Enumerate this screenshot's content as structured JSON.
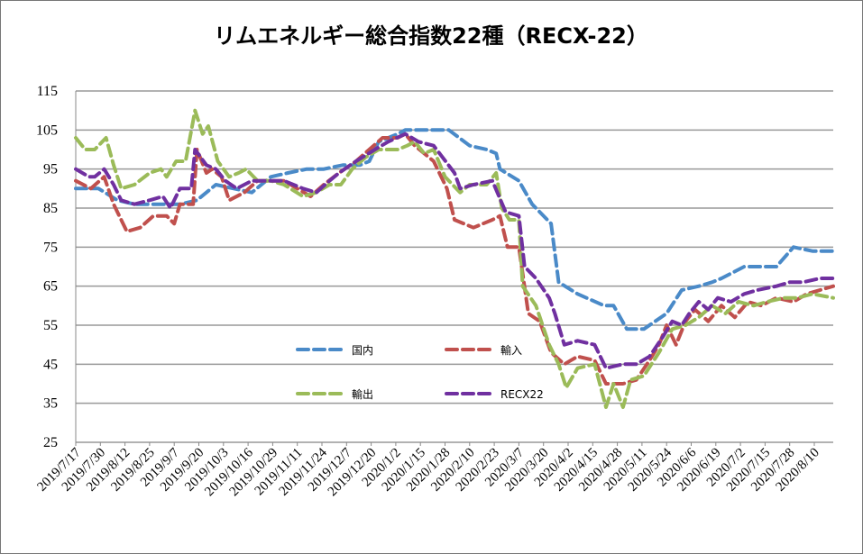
{
  "chart_data": {
    "type": "line",
    "title": "リムエネルギー総合指数22種（RECX-22）",
    "xlabel": "",
    "ylabel": "",
    "x_origin": "2019/7/17",
    "x_unit": "days since 2019/7/17",
    "xlim": [
      0,
      400
    ],
    "ylim": [
      25,
      115
    ],
    "y_ticks": [
      25,
      35,
      45,
      55,
      65,
      75,
      85,
      95,
      105,
      115
    ],
    "x_tick_step_days": 13,
    "x_tick_labels": [
      "2019/7/17",
      "2019/7/30",
      "2019/8/12",
      "2019/8/25",
      "2019/9/7",
      "2019/9/20",
      "2019/10/3",
      "2019/10/16",
      "2019/10/29",
      "2019/11/11",
      "2019/11/24",
      "2019/12/7",
      "2019/12/20",
      "2020/1/2",
      "2020/1/15",
      "2020/1/28",
      "2020/2/10",
      "2020/2/23",
      "2020/3/7",
      "2020/3/20",
      "2020/4/2",
      "2020/4/15",
      "2020/4/28",
      "2020/5/11",
      "2020/5/24",
      "2020/6/6",
      "2020/6/19",
      "2020/7/2",
      "2020/7/15",
      "2020/7/28",
      "2020/8/10"
    ],
    "grid": true,
    "legend_position": "inside-bottom-center",
    "series": [
      {
        "name": "国内",
        "color": "#4a8ac8",
        "points": [
          [
            0,
            90
          ],
          [
            12,
            90
          ],
          [
            22,
            87
          ],
          [
            31,
            86
          ],
          [
            55,
            86
          ],
          [
            64,
            87
          ],
          [
            74,
            91
          ],
          [
            93,
            89
          ],
          [
            103,
            93
          ],
          [
            112,
            94
          ],
          [
            122,
            95
          ],
          [
            131,
            95
          ],
          [
            141,
            96
          ],
          [
            150,
            96
          ],
          [
            155,
            97
          ],
          [
            160,
            102
          ],
          [
            170,
            104
          ],
          [
            174,
            105
          ],
          [
            179,
            105
          ],
          [
            197,
            105
          ],
          [
            208,
            101
          ],
          [
            217,
            100
          ],
          [
            222,
            99
          ],
          [
            224,
            95
          ],
          [
            234,
            92
          ],
          [
            241,
            86
          ],
          [
            251,
            81
          ],
          [
            255,
            66
          ],
          [
            265,
            63
          ],
          [
            279,
            60
          ],
          [
            284,
            60
          ],
          [
            291,
            54
          ],
          [
            300,
            54
          ],
          [
            312,
            58
          ],
          [
            320,
            64
          ],
          [
            329,
            65
          ],
          [
            336,
            66
          ],
          [
            341,
            67
          ],
          [
            353,
            70
          ],
          [
            370,
            70
          ],
          [
            379,
            75
          ],
          [
            389,
            74
          ],
          [
            400,
            74
          ]
        ]
      },
      {
        "name": "輸入",
        "color": "#c0504d",
        "points": [
          [
            0,
            92
          ],
          [
            8,
            90
          ],
          [
            15,
            93
          ],
          [
            20,
            86
          ],
          [
            27,
            79
          ],
          [
            34,
            80
          ],
          [
            41,
            83
          ],
          [
            48,
            83
          ],
          [
            52,
            81
          ],
          [
            55,
            86
          ],
          [
            62,
            86
          ],
          [
            64,
            100
          ],
          [
            69,
            94
          ],
          [
            72,
            95
          ],
          [
            77,
            93
          ],
          [
            81,
            87
          ],
          [
            89,
            89
          ],
          [
            96,
            92
          ],
          [
            103,
            92
          ],
          [
            110,
            92
          ],
          [
            117,
            90
          ],
          [
            124,
            88
          ],
          [
            131,
            91
          ],
          [
            139,
            94
          ],
          [
            148,
            97
          ],
          [
            155,
            100
          ],
          [
            162,
            103
          ],
          [
            170,
            103
          ],
          [
            174,
            104
          ],
          [
            179,
            101
          ],
          [
            189,
            97
          ],
          [
            196,
            90
          ],
          [
            200,
            82
          ],
          [
            210,
            80
          ],
          [
            220,
            82
          ],
          [
            224,
            83
          ],
          [
            228,
            75
          ],
          [
            234,
            75
          ],
          [
            239,
            58
          ],
          [
            245,
            56
          ],
          [
            251,
            48
          ],
          [
            258,
            45
          ],
          [
            265,
            47
          ],
          [
            274,
            46
          ],
          [
            280,
            40
          ],
          [
            289,
            40
          ],
          [
            296,
            41
          ],
          [
            303,
            46
          ],
          [
            308,
            50
          ],
          [
            312,
            55
          ],
          [
            317,
            50
          ],
          [
            322,
            56
          ],
          [
            327,
            59
          ],
          [
            334,
            56
          ],
          [
            341,
            60
          ],
          [
            348,
            57
          ],
          [
            355,
            61
          ],
          [
            362,
            60
          ],
          [
            370,
            62
          ],
          [
            379,
            61
          ],
          [
            386,
            63
          ],
          [
            393,
            64
          ],
          [
            400,
            65
          ]
        ]
      },
      {
        "name": "輸出",
        "color": "#9bbb59",
        "points": [
          [
            0,
            103
          ],
          [
            5,
            100
          ],
          [
            10,
            100
          ],
          [
            16,
            103
          ],
          [
            20,
            96
          ],
          [
            24,
            90
          ],
          [
            31,
            91
          ],
          [
            39,
            94
          ],
          [
            45,
            95
          ],
          [
            48,
            93
          ],
          [
            53,
            97
          ],
          [
            58,
            97
          ],
          [
            63,
            110
          ],
          [
            67,
            104
          ],
          [
            70,
            106
          ],
          [
            75,
            97
          ],
          [
            81,
            93
          ],
          [
            86,
            94
          ],
          [
            90,
            95
          ],
          [
            96,
            92
          ],
          [
            103,
            92
          ],
          [
            110,
            91
          ],
          [
            120,
            88
          ],
          [
            127,
            89
          ],
          [
            134,
            91
          ],
          [
            140,
            91
          ],
          [
            146,
            95
          ],
          [
            153,
            98
          ],
          [
            160,
            100
          ],
          [
            170,
            100
          ],
          [
            175,
            101
          ],
          [
            179,
            102
          ],
          [
            184,
            99
          ],
          [
            189,
            100
          ],
          [
            195,
            93
          ],
          [
            203,
            89
          ],
          [
            208,
            91
          ],
          [
            217,
            91
          ],
          [
            222,
            94
          ],
          [
            225,
            85
          ],
          [
            229,
            82
          ],
          [
            234,
            82
          ],
          [
            236,
            65
          ],
          [
            243,
            60
          ],
          [
            250,
            50
          ],
          [
            255,
            45
          ],
          [
            259,
            39
          ],
          [
            265,
            44
          ],
          [
            274,
            45
          ],
          [
            280,
            34
          ],
          [
            284,
            40
          ],
          [
            289,
            34
          ],
          [
            293,
            41
          ],
          [
            300,
            42
          ],
          [
            308,
            48
          ],
          [
            315,
            54
          ],
          [
            322,
            55
          ],
          [
            329,
            57
          ],
          [
            336,
            60
          ],
          [
            343,
            58
          ],
          [
            350,
            61
          ],
          [
            358,
            60
          ],
          [
            365,
            61
          ],
          [
            374,
            62
          ],
          [
            381,
            62
          ],
          [
            389,
            63
          ],
          [
            400,
            62
          ]
        ]
      },
      {
        "name": "RECX22",
        "color": "#7030a0",
        "points": [
          [
            0,
            95
          ],
          [
            7,
            93
          ],
          [
            10,
            93
          ],
          [
            15,
            95
          ],
          [
            20,
            91
          ],
          [
            24,
            87
          ],
          [
            31,
            86
          ],
          [
            39,
            87
          ],
          [
            46,
            88
          ],
          [
            50,
            85
          ],
          [
            55,
            90
          ],
          [
            61,
            90
          ],
          [
            63,
            100
          ],
          [
            69,
            96
          ],
          [
            74,
            95
          ],
          [
            79,
            92
          ],
          [
            85,
            90
          ],
          [
            93,
            92
          ],
          [
            103,
            92
          ],
          [
            110,
            92
          ],
          [
            120,
            90
          ],
          [
            127,
            89
          ],
          [
            134,
            92
          ],
          [
            139,
            94
          ],
          [
            148,
            97
          ],
          [
            158,
            100
          ],
          [
            165,
            102
          ],
          [
            174,
            104
          ],
          [
            181,
            102
          ],
          [
            189,
            101
          ],
          [
            200,
            94
          ],
          [
            203,
            90
          ],
          [
            210,
            91
          ],
          [
            220,
            92
          ],
          [
            227,
            84
          ],
          [
            234,
            83
          ],
          [
            237,
            70
          ],
          [
            243,
            67
          ],
          [
            250,
            62
          ],
          [
            253,
            58
          ],
          [
            258,
            50
          ],
          [
            265,
            51
          ],
          [
            274,
            50
          ],
          [
            280,
            44
          ],
          [
            289,
            45
          ],
          [
            296,
            45
          ],
          [
            303,
            47
          ],
          [
            310,
            52
          ],
          [
            315,
            56
          ],
          [
            320,
            55
          ],
          [
            324,
            58
          ],
          [
            329,
            61
          ],
          [
            334,
            59
          ],
          [
            339,
            62
          ],
          [
            346,
            61
          ],
          [
            353,
            63
          ],
          [
            360,
            64
          ],
          [
            370,
            65
          ],
          [
            377,
            66
          ],
          [
            384,
            66
          ],
          [
            393,
            67
          ],
          [
            400,
            67
          ]
        ]
      }
    ]
  }
}
